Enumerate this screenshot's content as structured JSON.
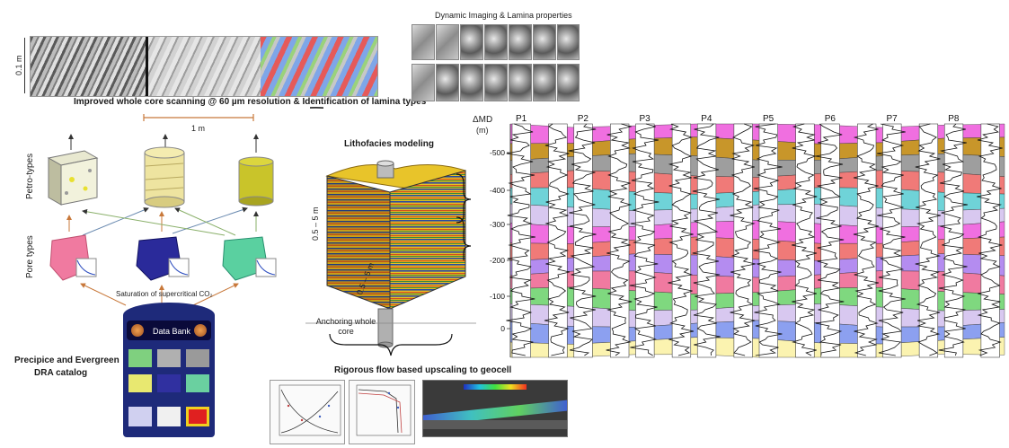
{
  "core_scan": {
    "scale_label": "0.1 m",
    "caption": "Improved whole core scanning @ 60 µm resolution & Identification of lamina types"
  },
  "dynamic_imaging": {
    "caption": "Dynamic Imaging & Lamina properties"
  },
  "petro_types": {
    "label": "Petro-types",
    "scale": "1 m"
  },
  "pore_types": {
    "label": "Pore types"
  },
  "saturation": {
    "label": "Saturation of supercritical CO₂"
  },
  "data_bank": {
    "title": "Data Bank"
  },
  "catalog": {
    "caption_line1": "Precipice and Evergreen",
    "caption_line2": "DRA catalog"
  },
  "lithofacies": {
    "title": "Lithofacies modeling",
    "height_label": "0.5 – 5 m",
    "width_label": "0.5 – 5 m",
    "anchor_label": "Anchoring whole core"
  },
  "upscaling": {
    "caption": "Rigorous flow based upscaling to geocell"
  },
  "correlation": {
    "y_title": "ΔMD",
    "y_unit": "(m)",
    "wells": [
      "P1",
      "P2",
      "P3",
      "P4",
      "P5",
      "P6",
      "P7",
      "P8"
    ],
    "y_ticks": [
      "-500",
      "-400",
      "-300",
      "-200",
      "-100",
      "0"
    ],
    "layers": [
      {
        "color": "#f06fe0"
      },
      {
        "color": "#c8962a"
      },
      {
        "color": "#9e9e9e"
      },
      {
        "color": "#f07a78"
      },
      {
        "color": "#6fd3d8"
      },
      {
        "color": "#d8c8f0"
      },
      {
        "color": "#f06fe0"
      },
      {
        "color": "#f07a78"
      },
      {
        "color": "#b48cf0"
      },
      {
        "color": "#f07aa0"
      },
      {
        "color": "#7fd87f"
      },
      {
        "color": "#d8c8f0"
      },
      {
        "color": "#8ca0f0"
      },
      {
        "color": "#fbf3b0"
      }
    ]
  }
}
